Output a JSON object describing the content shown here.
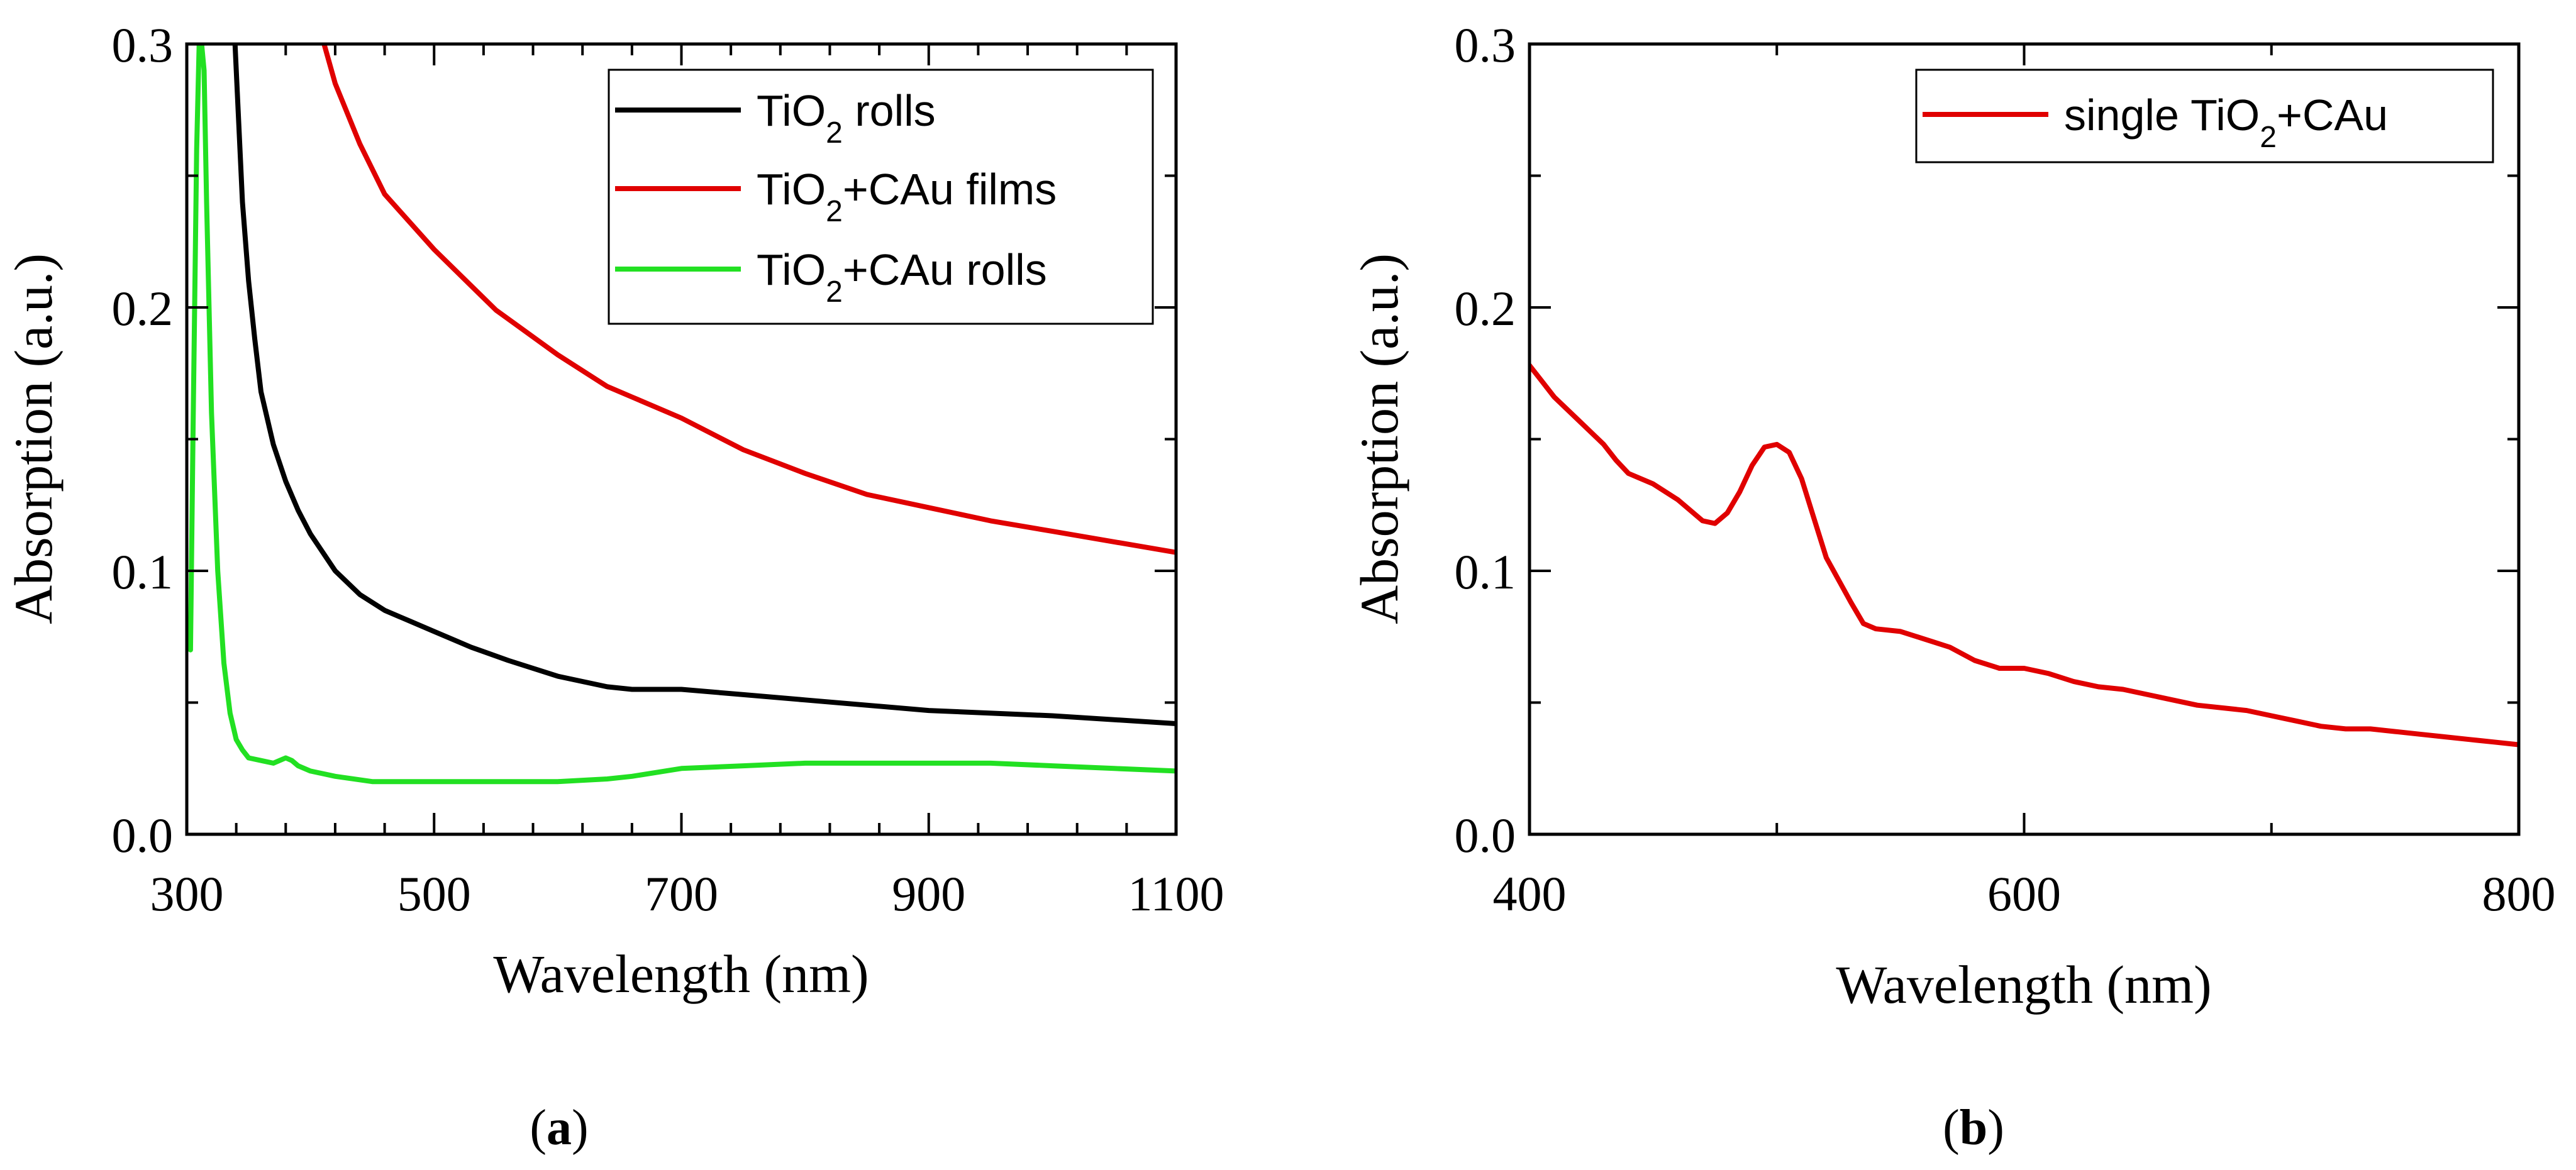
{
  "chart_data": [
    {
      "type": "line",
      "panel": "a",
      "panel_label": "a",
      "xlabel": "Wavelength (nm)",
      "ylabel": "Absorption (a.u.)",
      "xlim": [
        300,
        1100
      ],
      "ylim": [
        0.0,
        0.3
      ],
      "xticks": [
        300,
        500,
        700,
        900,
        1100
      ],
      "xtick_labels": [
        "300",
        "500",
        "700",
        "900",
        "1100"
      ],
      "yticks": [
        0.0,
        0.1,
        0.2,
        0.3
      ],
      "ytick_labels": [
        "0.0",
        "0.1",
        "0.2",
        "0.3"
      ],
      "legend_position": "top-right",
      "series": [
        {
          "name": "TiO2 rolls",
          "label_main": "TiO",
          "label_sub": "2",
          "label_rest": " rolls",
          "color": "#000000",
          "x": [
            339,
            342,
            345,
            350,
            355,
            360,
            370,
            380,
            390,
            400,
            420,
            440,
            460,
            480,
            500,
            530,
            560,
            600,
            640,
            660,
            700,
            750,
            800,
            900,
            1000,
            1100
          ],
          "y": [
            0.3,
            0.27,
            0.24,
            0.21,
            0.188,
            0.168,
            0.148,
            0.134,
            0.123,
            0.114,
            0.1,
            0.091,
            0.085,
            0.081,
            0.077,
            0.071,
            0.066,
            0.06,
            0.056,
            0.055,
            0.055,
            0.053,
            0.051,
            0.047,
            0.045,
            0.042
          ]
        },
        {
          "name": "TiO2+CAu films",
          "label_main": "TiO",
          "label_sub": "2",
          "label_rest": "+CAu films",
          "color": "#e00000",
          "x": [
            411,
            420,
            440,
            460,
            500,
            550,
            600,
            640,
            660,
            700,
            750,
            800,
            850,
            900,
            950,
            1000,
            1050,
            1100
          ],
          "y": [
            0.3,
            0.285,
            0.262,
            0.243,
            0.222,
            0.199,
            0.182,
            0.17,
            0.166,
            0.158,
            0.146,
            0.137,
            0.129,
            0.124,
            0.119,
            0.115,
            0.111,
            0.107
          ]
        },
        {
          "name": "TiO2+CAu rolls",
          "label_main": "TiO",
          "label_sub": "2",
          "label_rest": "+CAu rolls",
          "color": "#22e022",
          "x": [
            303,
            305,
            308,
            310,
            312,
            314,
            316,
            318,
            320,
            325,
            330,
            335,
            340,
            345,
            350,
            360,
            370,
            375,
            380,
            385,
            390,
            400,
            420,
            450,
            500,
            550,
            600,
            640,
            660,
            700,
            750,
            800,
            850,
            900,
            950,
            1000,
            1050,
            1100
          ],
          "y": [
            0.07,
            0.15,
            0.26,
            0.3,
            0.3,
            0.29,
            0.24,
            0.2,
            0.16,
            0.1,
            0.065,
            0.046,
            0.036,
            0.032,
            0.029,
            0.028,
            0.027,
            0.028,
            0.029,
            0.028,
            0.026,
            0.024,
            0.022,
            0.02,
            0.02,
            0.02,
            0.02,
            0.021,
            0.022,
            0.025,
            0.026,
            0.027,
            0.027,
            0.027,
            0.027,
            0.026,
            0.025,
            0.024
          ]
        }
      ]
    },
    {
      "type": "line",
      "panel": "b",
      "panel_label": "b",
      "xlabel": "Wavelength (nm)",
      "ylabel": "Absorption (a.u.)",
      "xlim": [
        400,
        800
      ],
      "ylim": [
        0.0,
        0.3
      ],
      "xticks": [
        400,
        600,
        800
      ],
      "xtick_labels": [
        "400",
        "600",
        "800"
      ],
      "yticks": [
        0.0,
        0.1,
        0.2,
        0.3
      ],
      "ytick_labels": [
        "0.0",
        "0.1",
        "0.2",
        "0.3"
      ],
      "legend_position": "top-right",
      "series": [
        {
          "name": "single TiO2+CAu",
          "label_main": "single TiO",
          "label_sub": "2",
          "label_rest": "+CAu",
          "color": "#e00000",
          "x": [
            400,
            405,
            410,
            420,
            430,
            435,
            440,
            450,
            460,
            470,
            475,
            480,
            485,
            490,
            495,
            500,
            505,
            510,
            515,
            520,
            530,
            535,
            540,
            550,
            560,
            570,
            580,
            590,
            600,
            610,
            620,
            630,
            640,
            650,
            660,
            670,
            680,
            690,
            700,
            710,
            720,
            730,
            740,
            750,
            760,
            770,
            780,
            790,
            800
          ],
          "y": [
            0.178,
            0.172,
            0.166,
            0.157,
            0.148,
            0.142,
            0.137,
            0.133,
            0.127,
            0.119,
            0.118,
            0.122,
            0.13,
            0.14,
            0.147,
            0.148,
            0.145,
            0.135,
            0.12,
            0.105,
            0.088,
            0.08,
            0.078,
            0.077,
            0.074,
            0.071,
            0.066,
            0.063,
            0.063,
            0.061,
            0.058,
            0.056,
            0.055,
            0.053,
            0.051,
            0.049,
            0.048,
            0.047,
            0.045,
            0.043,
            0.041,
            0.04,
            0.04,
            0.039,
            0.038,
            0.037,
            0.036,
            0.035,
            0.034
          ]
        }
      ]
    }
  ]
}
